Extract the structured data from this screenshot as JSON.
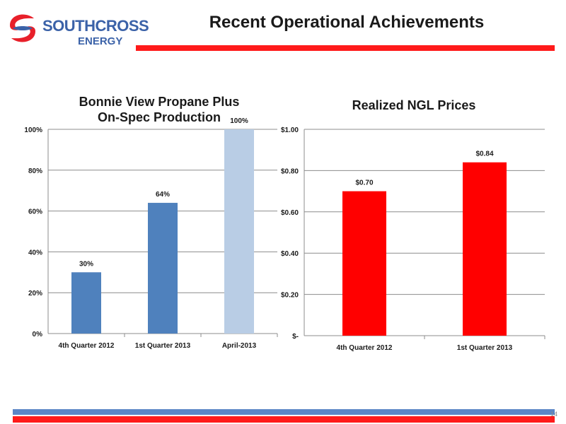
{
  "header": {
    "logo_word1": "SOUTHCROSS",
    "logo_word2": "ENERGY",
    "title": "Recent Operational Achievements"
  },
  "footer": {
    "page_number": "14"
  },
  "colors": {
    "brand_red": "#ff1a1a",
    "brand_blue": "#3b62a8",
    "bar_blue": "#4f81bd",
    "bar_light_blue": "#b9cde5",
    "bar_red": "#ff0000"
  },
  "chart_data": [
    {
      "type": "bar",
      "title_line1": "Bonnie View Propane Plus",
      "title_line2": "On-Spec Production",
      "categories": [
        "4th Quarter 2012",
        "1st Quarter 2013",
        "April-2013"
      ],
      "values": [
        30,
        64,
        100
      ],
      "data_labels": [
        "30%",
        "64%",
        "100%"
      ],
      "bar_colors": [
        "#4f81bd",
        "#4f81bd",
        "#b9cde5"
      ],
      "ylim": [
        0,
        100
      ],
      "yticks": [
        0,
        20,
        40,
        60,
        80,
        100
      ],
      "ytick_labels": [
        "0%",
        "20%",
        "40%",
        "60%",
        "80%",
        "100%"
      ],
      "grid": true
    },
    {
      "type": "bar",
      "title": "Realized NGL Prices",
      "categories": [
        "4th Quarter 2012",
        "1st Quarter 2013"
      ],
      "values": [
        0.7,
        0.84
      ],
      "data_labels": [
        "$0.70",
        "$0.84"
      ],
      "bar_colors": [
        "#ff0000",
        "#ff0000"
      ],
      "ylim": [
        0,
        1.0
      ],
      "yticks": [
        0,
        0.2,
        0.4,
        0.6,
        0.8,
        1.0
      ],
      "ytick_labels": [
        "$-",
        "$0.20",
        "$0.40",
        "$0.60",
        "$0.80",
        "$1.00"
      ],
      "grid": true
    }
  ]
}
